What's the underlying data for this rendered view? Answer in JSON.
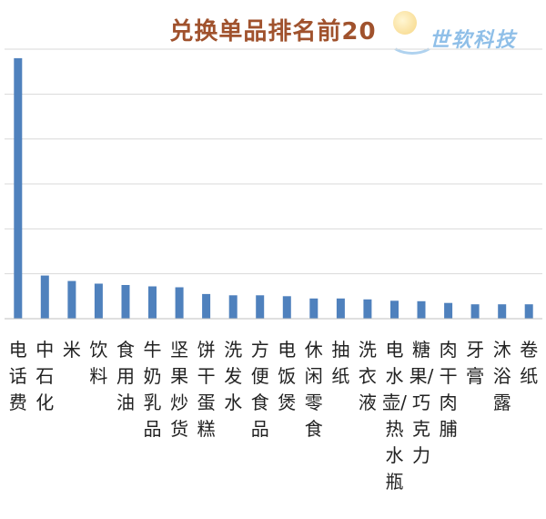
{
  "chart_data": {
    "type": "bar",
    "title": "兑换单品排名前20",
    "categories": [
      "电话费",
      "中石化",
      "米",
      "饮料",
      "食用油",
      "牛奶乳品",
      "坚果炒货",
      "饼干蛋糕",
      "洗发水",
      "方便食品",
      "电饭煲",
      "休闲零食",
      "抽纸",
      "洗衣液",
      "电水壶/热水瓶",
      "糖果/巧克力",
      "肉干肉脯",
      "牙膏",
      "沐浴露",
      "卷纸"
    ],
    "values": [
      5.8,
      0.96,
      0.84,
      0.78,
      0.75,
      0.72,
      0.7,
      0.55,
      0.52,
      0.52,
      0.5,
      0.45,
      0.45,
      0.43,
      0.4,
      0.39,
      0.35,
      0.32,
      0.32,
      0.32
    ],
    "ylim": [
      0,
      6
    ],
    "yticks": [
      0,
      1,
      2,
      3,
      4,
      5,
      6
    ],
    "grid": true,
    "xlabel": "",
    "ylabel": "",
    "colors": {
      "bar": "#4f81bd",
      "grid": "#d9d9d9",
      "axis": "#bfbfbf",
      "title": "#a0522d"
    }
  },
  "watermark": {
    "text": "世软科技"
  }
}
